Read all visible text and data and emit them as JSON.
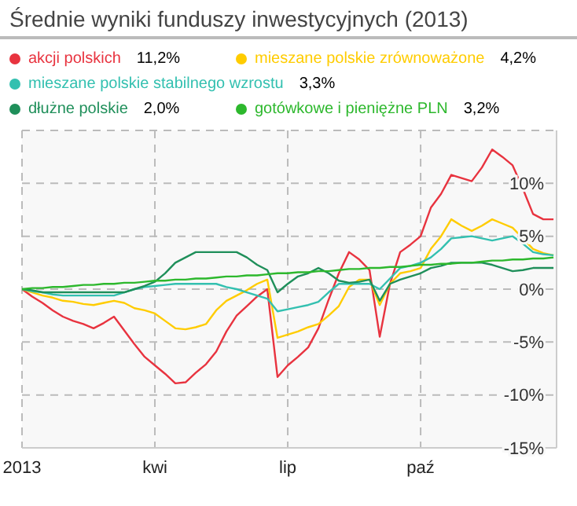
{
  "chart_data": {
    "type": "line",
    "title": "Średnie wyniki funduszy inwestycyjnych (2013)",
    "categories": [
      "2013",
      null,
      null,
      null,
      null,
      null,
      null,
      null,
      null,
      null,
      null,
      null,
      null,
      "kwi",
      null,
      null,
      null,
      null,
      null,
      null,
      null,
      null,
      null,
      null,
      null,
      null,
      "lip",
      null,
      null,
      null,
      null,
      null,
      null,
      null,
      null,
      null,
      null,
      null,
      null,
      "paź",
      null,
      null,
      null,
      null,
      null,
      null,
      null,
      null,
      null,
      null,
      null,
      null,
      null
    ],
    "series": [
      {
        "name": "akcji polskich",
        "color": "#e8333f",
        "values": [
          0,
          -0.7,
          -1.3,
          -2.0,
          -2.6,
          -3.0,
          -3.3,
          -3.7,
          -3.2,
          -2.6,
          -3.9,
          -5.2,
          -6.4,
          -7.2,
          -8.0,
          -8.9,
          -8.8,
          -7.9,
          -7.1,
          -5.9,
          -4.0,
          -2.5,
          -1.6,
          -0.7,
          0,
          -8.3,
          -7.2,
          -6.4,
          -5.5,
          -3.7,
          -1.0,
          1.5,
          3.5,
          2.8,
          1.8,
          -4.5,
          0.5,
          3.5,
          4.2,
          5,
          7.7,
          9.0,
          10.8,
          10.5,
          10.2,
          11.5,
          13.2,
          12.5,
          11.7,
          9.5,
          7.1,
          6.6,
          6.6
        ]
      },
      {
        "name": "mieszane polskie zrównoważone",
        "color": "#ffcc00",
        "values": [
          0,
          -0.3,
          -0.6,
          -0.8,
          -1.1,
          -1.2,
          -1.4,
          -1.5,
          -1.3,
          -1.1,
          -1.3,
          -1.8,
          -2.0,
          -2.3,
          -3.0,
          -3.7,
          -3.8,
          -3.6,
          -3.3,
          -2.0,
          -1.1,
          -0.6,
          -0.1,
          0.5,
          0.9,
          -4.6,
          -4.3,
          -4.0,
          -3.6,
          -3.3,
          -2.5,
          -1.6,
          0.2,
          0.9,
          0.9,
          -1.5,
          0.5,
          1.5,
          1.7,
          2,
          3.8,
          5.0,
          6.6,
          6.0,
          5.5,
          6.0,
          6.6,
          6.2,
          5.8,
          4.8,
          3.8,
          3.4,
          3.2
        ]
      },
      {
        "name": "mieszane polskie stabilnego wzrostu",
        "color": "#33c0b0",
        "values": [
          0,
          -0.2,
          -0.3,
          -0.5,
          -0.6,
          -0.6,
          -0.6,
          -0.6,
          -0.6,
          -0.6,
          -0.3,
          0,
          0.2,
          0.3,
          0.4,
          0.5,
          0.5,
          0.5,
          0.5,
          0.5,
          0.2,
          0,
          -0.3,
          -0.6,
          -0.9,
          -2.1,
          -1.9,
          -1.7,
          -1.5,
          -1.2,
          -0.3,
          0.5,
          0.5,
          0.5,
          0.5,
          0,
          1.0,
          2,
          2.2,
          2.5,
          3,
          3.8,
          4.8,
          4.9,
          5,
          4.8,
          4.6,
          4.8,
          5,
          4.3,
          3.5,
          3.3,
          3.2
        ]
      },
      {
        "name": "dłużne polskie",
        "color": "#1f8f5a",
        "values": [
          0,
          -0.1,
          -0.3,
          -0.3,
          -0.3,
          -0.3,
          -0.3,
          -0.3,
          -0.3,
          -0.3,
          -0.3,
          0,
          0.3,
          0.7,
          1.5,
          2.5,
          3,
          3.5,
          3.5,
          3.5,
          3.5,
          3.5,
          3,
          2.3,
          1.8,
          -0.3,
          0.5,
          1.2,
          1.5,
          2,
          1.5,
          0.8,
          0.6,
          0.7,
          0.9,
          -1.1,
          0.5,
          0.9,
          1.2,
          1.5,
          2,
          2.2,
          2.5,
          2.5,
          2.5,
          2.5,
          2.3,
          2,
          1.7,
          1.8,
          2,
          2,
          2
        ]
      },
      {
        "name": "gotówkowe i pieniężne PLN",
        "color": "#2db82d",
        "values": [
          0,
          0.1,
          0.1,
          0.2,
          0.2,
          0.3,
          0.4,
          0.4,
          0.5,
          0.5,
          0.6,
          0.6,
          0.7,
          0.8,
          0.8,
          0.9,
          0.9,
          1.0,
          1.0,
          1.1,
          1.2,
          1.2,
          1.3,
          1.3,
          1.4,
          1.5,
          1.5,
          1.6,
          1.6,
          1.7,
          1.7,
          1.8,
          1.9,
          1.9,
          2.0,
          2.0,
          2.1,
          2.1,
          2.2,
          2.3,
          2.3,
          2.4,
          2.4,
          2.5,
          2.5,
          2.6,
          2.7,
          2.7,
          2.8,
          2.8,
          2.9,
          2.9,
          3.0
        ]
      }
    ],
    "annotations": [
      "11,2%",
      "4,2%",
      "3,3%",
      "2,0%",
      "3,2%"
    ],
    "ylim": [
      -15,
      15
    ],
    "yticks": [
      {
        "value": -15,
        "label": "-15%"
      },
      {
        "value": -10,
        "label": "-10%"
      },
      {
        "value": -5,
        "label": "-5%"
      },
      {
        "value": 0,
        "label": "0%"
      },
      {
        "value": 5,
        "label": "5%"
      },
      {
        "value": 10,
        "label": "10%"
      }
    ],
    "grid": true,
    "legend": "top",
    "marker": "none",
    "line_style": "solid"
  }
}
